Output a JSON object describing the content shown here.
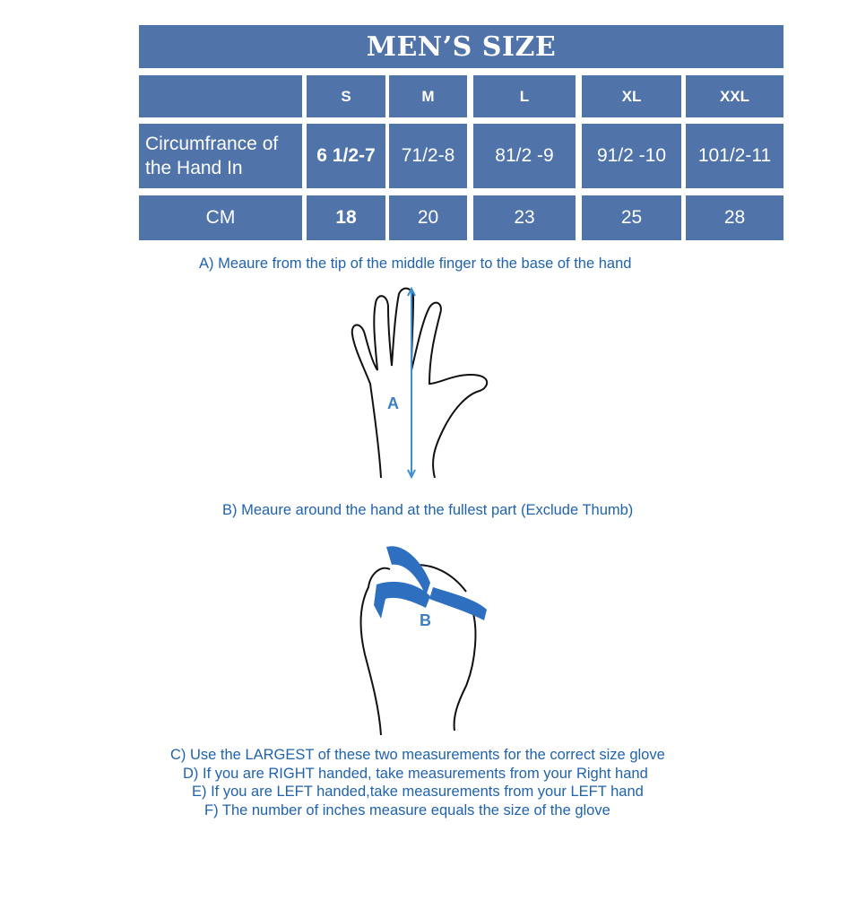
{
  "title": "MEN’S SIZE",
  "table": {
    "sizes": [
      "S",
      "M",
      "L",
      "XL",
      "XXL"
    ],
    "row_inches": {
      "label": "Circumfrance of the Hand In",
      "values": [
        "6 1/2-7",
        "71/2-8",
        "81/2 -9",
        "91/2 -10",
        "101/2-11"
      ]
    },
    "row_cm": {
      "label": "CM",
      "values": [
        "18",
        "20",
        "23",
        "25",
        "28"
      ]
    }
  },
  "instructions": {
    "a": "A) Meaure from the tip of the middle finger to the base of the hand",
    "a_marker": "A",
    "b": "B) Meaure around the hand at the fullest part (Exclude Thumb)",
    "b_marker": "B",
    "c": "C) Use the LARGEST of these two measurements for the correct size glove",
    "d": "D) If you are RIGHT handed, take measurements from your Right hand",
    "e": "E) If you are LEFT handed,take measurements from your LEFT hand",
    "f": "F) The number of inches measure equals the size of the glove"
  },
  "colors": {
    "table": "#5073aa",
    "text": "#2163ab"
  }
}
